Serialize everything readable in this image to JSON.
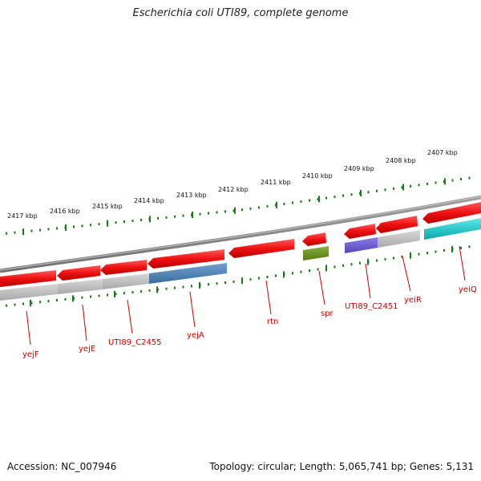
{
  "title": "Escherichia coli UTI89, complete genome",
  "footer": {
    "accession": "Accession: NC_007946",
    "summary": "Topology: circular; Length: 5,065,741 bp; Genes: 5,131"
  },
  "colors": {
    "ruler": "#1a7a1a",
    "backbone": "#8a8a8a",
    "gene_red": "#ee1111",
    "gene_grey": "#b5b5b5",
    "gene_blue": "#4a7fb0",
    "gene_green": "#6a8f20",
    "gene_purple": "#6a5acd",
    "gene_cyan": "#10c8cc",
    "label": "#cc0000"
  },
  "ruler": {
    "labels": [
      "2417 kbp",
      "2416 kbp",
      "2415 kbp",
      "2414 kbp",
      "2413 kbp",
      "2412 kbp",
      "2411 kbp",
      "2410 kbp",
      "2409 kbp",
      "2408 kbp",
      "2407 kbp"
    ]
  },
  "gene_labels": [
    "yejF",
    "yejE",
    "UTI89_C2455",
    "yejA",
    "rtn",
    "spr",
    "UTI89_C2451",
    "yeiR",
    "yeiQ"
  ]
}
